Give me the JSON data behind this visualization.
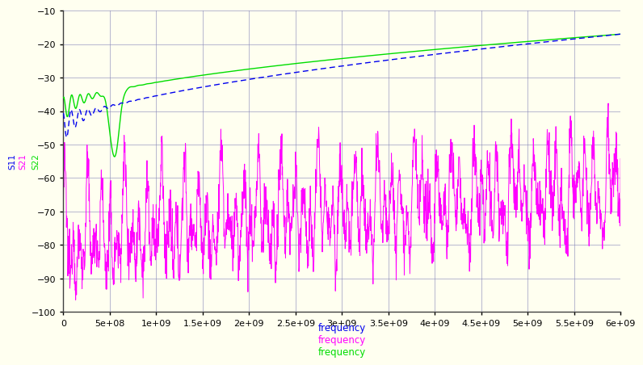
{
  "background_color": "#fffff0",
  "plot_background_color": "#fffff0",
  "grid_color": "#8888bb",
  "xlim": [
    0,
    6000000000.0
  ],
  "ylim": [
    -100,
    -10
  ],
  "yticks": [
    -100,
    -90,
    -80,
    -70,
    -60,
    -50,
    -40,
    -30,
    -20,
    -10
  ],
  "xticks": [
    0,
    500000000.0,
    1000000000.0,
    1500000000.0,
    2000000000.0,
    2500000000.0,
    3000000000.0,
    3500000000.0,
    4000000000.0,
    4500000000.0,
    5000000000.0,
    5500000000.0,
    6000000000.0
  ],
  "s22_color": "#00dd00",
  "s21_color": "#0000ee",
  "s11_color": "#ff00ff",
  "legend_labels": [
    "S22",
    "S21",
    "S11"
  ],
  "legend_colors_left": [
    "#00dd00",
    "#ff00ff",
    "#0000ee"
  ],
  "xlabel_colors": [
    "#0000ee",
    "#ff00ff",
    "#00dd00"
  ],
  "tick_fontsize": 8,
  "label_fontsize": 9
}
